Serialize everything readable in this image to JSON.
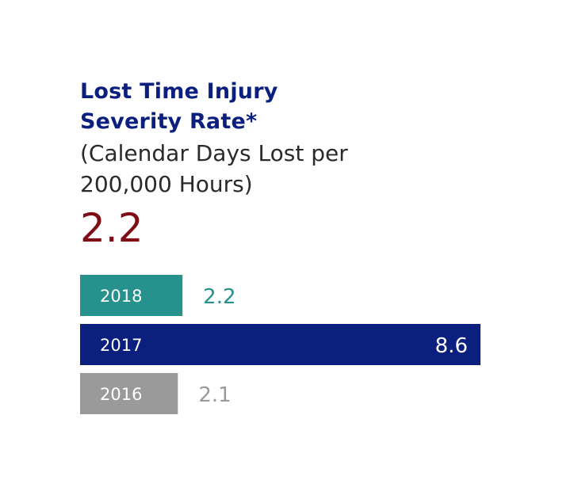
{
  "title_lines": [
    "Lost Time Injury",
    "Severity Rate*"
  ],
  "subtitle_lines": [
    "(Calendar Days Lost per",
    "200,000 Hours)"
  ],
  "headline_value": "2.2",
  "colors": {
    "title": "#0b1f7f",
    "headline": "#7f0e14",
    "subtitle": "#2a2a2a"
  },
  "chart_data": {
    "type": "bar",
    "orientation": "horizontal",
    "categories": [
      "2018",
      "2017",
      "2016"
    ],
    "values": [
      2.2,
      8.6,
      2.1
    ],
    "value_labels": [
      "2.2",
      "8.6",
      "2.1"
    ],
    "bar_colors": [
      "#26918d",
      "#0b1f7f",
      "#9a9a9a"
    ],
    "value_label_colors": [
      "#26918d",
      "#ffffff",
      "#9a9a9a"
    ],
    "value_label_position": [
      "outside",
      "inside",
      "outside"
    ],
    "category_label_color": "#ffffff",
    "xlim": [
      0,
      8.6
    ],
    "grid": false,
    "legend": "none",
    "title": "Lost Time Injury Severity Rate*",
    "xlabel": "",
    "ylabel": ""
  }
}
